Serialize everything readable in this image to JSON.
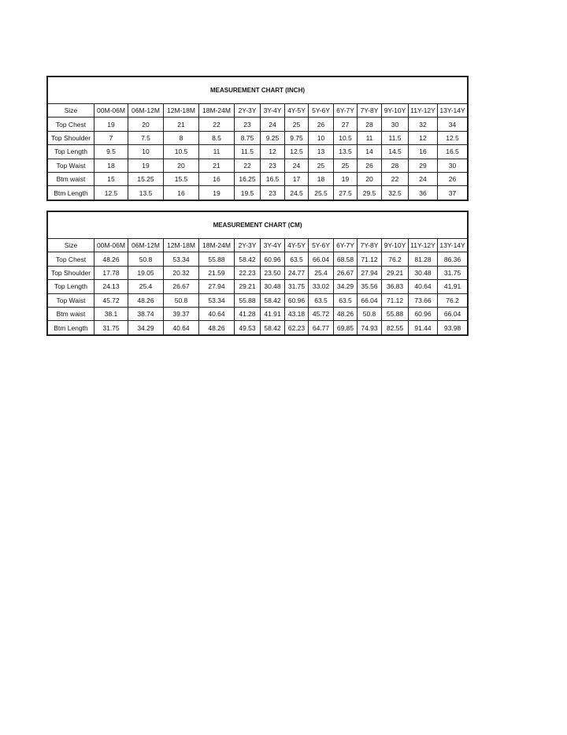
{
  "sizes": [
    "00M-06M",
    "06M-12M",
    "12M-18M",
    "18M-24M",
    "2Y-3Y",
    "3Y-4Y",
    "4Y-5Y",
    "5Y-6Y",
    "6Y-7Y",
    "7Y-8Y",
    "9Y-10Y",
    "11Y-12Y",
    "13Y-14Y"
  ],
  "tables": [
    {
      "title": "MEASUREMENT CHART (INCH)",
      "size_label": "Size",
      "rows": [
        {
          "label": "Top  Chest",
          "values": [
            "19",
            "20",
            "21",
            "22",
            "23",
            "24",
            "25",
            "26",
            "27",
            "28",
            "30",
            "32",
            "34"
          ]
        },
        {
          "label": "Top Shoulder",
          "values": [
            "7",
            "7.5",
            "8",
            "8.5",
            "8.75",
            "9.25",
            "9.75",
            "10",
            "10.5",
            "11",
            "11.5",
            "12",
            "12.5"
          ]
        },
        {
          "label": "Top Length",
          "values": [
            "9.5",
            "10",
            "10.5",
            "11",
            "11.5",
            "12",
            "12.5",
            "13",
            "13.5",
            "14",
            "14.5",
            "16",
            "16.5"
          ]
        },
        {
          "label": "Top Waist",
          "values": [
            "18",
            "19",
            "20",
            "21",
            "22",
            "23",
            "24",
            "25",
            "25",
            "26",
            "28",
            "29",
            "30"
          ]
        },
        {
          "label": "Btm waist",
          "values": [
            "15",
            "15.25",
            "15.5",
            "16",
            "16.25",
            "16.5",
            "17",
            "18",
            "19",
            "20",
            "22",
            "24",
            "26"
          ]
        },
        {
          "label": "Btm Length",
          "values": [
            "12.5",
            "13.5",
            "16",
            "19",
            "19.5",
            "23",
            "24.5",
            "25.5",
            "27.5",
            "29.5",
            "32.5",
            "36",
            "37"
          ]
        }
      ]
    },
    {
      "title": "MEASUREMENT CHART (CM)",
      "size_label": "Size",
      "rows": [
        {
          "label": "Top  Chest",
          "values": [
            "48.26",
            "50.8",
            "53.34",
            "55.88",
            "58.42",
            "60.96",
            "63.5",
            "66.04",
            "68.58",
            "71.12",
            "76.2",
            "81.28",
            "86.36"
          ]
        },
        {
          "label": "Top Shoulder",
          "values": [
            "17.78",
            "19.05",
            "20.32",
            "21.59",
            "22.23",
            "23.50",
            "24.77",
            "25.4",
            "26.67",
            "27.94",
            "29.21",
            "30.48",
            "31.75"
          ]
        },
        {
          "label": "Top Length",
          "values": [
            "24.13",
            "25.4",
            "26.67",
            "27.94",
            "29.21",
            "30.48",
            "31.75",
            "33.02",
            "34.29",
            "35.56",
            "36.83",
            "40.64",
            "41.91"
          ]
        },
        {
          "label": "Top Waist",
          "values": [
            "45.72",
            "48.26",
            "50.8",
            "53.34",
            "55.88",
            "58.42",
            "60.96",
            "63.5",
            "63.5",
            "66.04",
            "71.12",
            "73.66",
            "76.2"
          ]
        },
        {
          "label": "Btm waist",
          "values": [
            "38.1",
            "38.74",
            "39.37",
            "40.64",
            "41.28",
            "41.91",
            "43.18",
            "45.72",
            "48.26",
            "50.8",
            "55.88",
            "60.96",
            "66.04"
          ]
        },
        {
          "label": "Btm Length",
          "values": [
            "31.75",
            "34.29",
            "40.64",
            "48.26",
            "49.53",
            "58.42",
            "62.23",
            "64.77",
            "69.85",
            "74.93",
            "82.55",
            "91.44",
            "93.98"
          ]
        }
      ]
    }
  ]
}
